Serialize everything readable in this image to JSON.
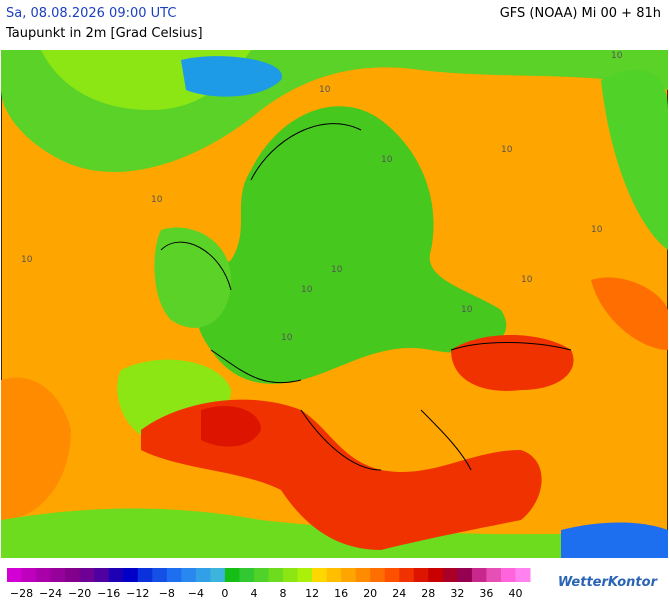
{
  "header": {
    "date": "Sa, 08.08.2026 09:00 UTC",
    "model": "GFS (NOAA) Mi 00 + 81h",
    "parameter": "Taupunkt in 2m [Grad Celsius]"
  },
  "map": {
    "contour_labels": [
      "10",
      "10",
      "10",
      "10",
      "10",
      "10",
      "10",
      "10",
      "10",
      "10",
      "10",
      "10"
    ]
  },
  "legend": {
    "labels": [
      "−28",
      "−24",
      "−20",
      "−16",
      "−12",
      "−8",
      "−4",
      "0",
      "4",
      "8",
      "12",
      "16",
      "20",
      "24",
      "28",
      "32",
      "36",
      "40"
    ],
    "colors": [
      "#d200d2",
      "#be00be",
      "#aa00aa",
      "#96009b",
      "#82008c",
      "#6e0096",
      "#5000a0",
      "#1e00b4",
      "#0000c8",
      "#0a32dc",
      "#1450e6",
      "#1e6ef0",
      "#2888f0",
      "#32a0e6",
      "#3cb4dc",
      "#14be14",
      "#32c832",
      "#50d228",
      "#6edc1e",
      "#8ce614",
      "#aaf00a",
      "#ffd700",
      "#ffbe00",
      "#ffa500",
      "#ff8c00",
      "#ff6e00",
      "#ff5000",
      "#f03200",
      "#dc1400",
      "#c80000",
      "#aa0028",
      "#960050",
      "#c8288c",
      "#e650b4",
      "#ff64dc",
      "#ff82f0"
    ]
  },
  "logo": "WetterKontor"
}
